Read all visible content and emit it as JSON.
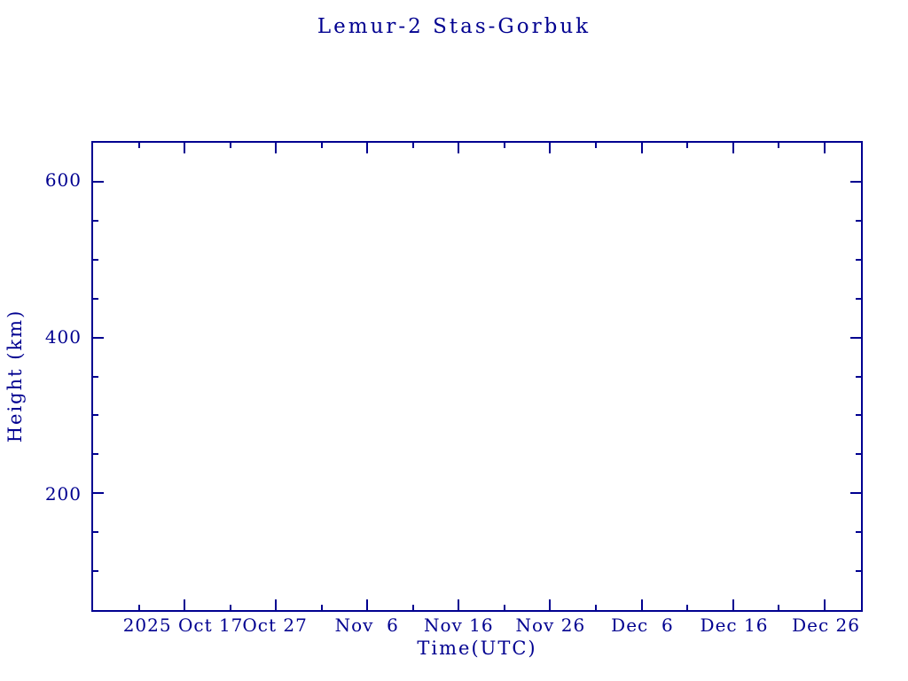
{
  "accent_color": "#000090",
  "background_color": "#ffffff",
  "chart_data": {
    "type": "line",
    "title": "Lemur-2 Stas-Gorbuk",
    "xlabel": "Time(UTC)",
    "ylabel": "Height (km)",
    "grid": false,
    "legend": null,
    "frame": "full-box-inward-ticks",
    "x_axis": {
      "unit": "date",
      "range_days": [
        0,
        84
      ],
      "major_ticks": [
        {
          "day": 10,
          "label": "2025 Oct 17"
        },
        {
          "day": 20,
          "label": "Oct 27"
        },
        {
          "day": 30,
          "label": "Nov  6"
        },
        {
          "day": 40,
          "label": "Nov 16"
        },
        {
          "day": 50,
          "label": "Nov 26"
        },
        {
          "day": 60,
          "label": "Dec  6"
        },
        {
          "day": 70,
          "label": "Dec 16"
        },
        {
          "day": 80,
          "label": "Dec 26"
        }
      ],
      "minor_tick_days": [
        5,
        15,
        25,
        35,
        45,
        55,
        65,
        75
      ]
    },
    "y_axis": {
      "unit": "km",
      "range_km": [
        50,
        650
      ],
      "major_ticks": [
        {
          "value": 600,
          "label": "600"
        },
        {
          "value": 400,
          "label": "400"
        },
        {
          "value": 200,
          "label": "200"
        }
      ],
      "minor_tick_values": [
        100,
        150,
        250,
        300,
        350,
        450,
        500,
        550
      ]
    },
    "series": []
  }
}
